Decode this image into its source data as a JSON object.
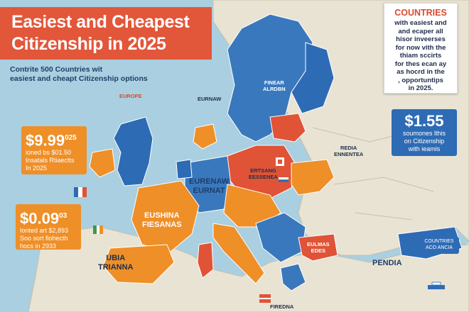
{
  "colors": {
    "sea": "#a9cfe0",
    "land": "#e9e3d4",
    "blue_region": "#3a78bd",
    "orange_region": "#ef8f28",
    "red_region": "#e05336",
    "title_banner": "#e2563a"
  },
  "title": {
    "line1": "Easiest and Cheapest",
    "line2": "Citizenship in 2025"
  },
  "subtitle": {
    "line1": "Contrite 500 Countries wit",
    "line2": "easiest and cheapt Citizenship options"
  },
  "info_box": {
    "heading": "COUNTRIES",
    "lines": [
      "with easiest and",
      "and ecaper all",
      "hisor inveerses",
      "for now vith the",
      "thiam sccirts",
      "for thes ecan ay",
      "as hocrd in the",
      ", opportuntips",
      "in 2025."
    ]
  },
  "cards": {
    "left_top": {
      "price": "$9.99",
      "sup": "025",
      "lines": [
        "ioned bs $01.50",
        "Insatals Rtiaectts",
        "In 2025"
      ]
    },
    "left_bottom": {
      "price": "$0.09",
      "sup": "03",
      "lines": [
        "Ionted art $2,893",
        "Soo sort fiohecth",
        "hocs in 2933"
      ]
    },
    "right": {
      "price": "$1.55",
      "lines": [
        "soumones lthis",
        "on Citizenship",
        "with ieamis"
      ]
    },
    "right_small": {
      "lines": [
        "COUNTRIES",
        "ACO ANCIA"
      ]
    }
  },
  "map_labels": {
    "europe": "EUROPE",
    "eurnaw": "EURNAW",
    "finland": [
      "FINEAR",
      "ALRDBN"
    ],
    "central_left": [
      "EURENAW",
      "EURNAT"
    ],
    "east_center": [
      "ERTSANG",
      "EESSENEA"
    ],
    "iberia": [
      "EUSHINA",
      "FIESANAS"
    ],
    "africa_left": [
      "UBIA",
      "TRIANNA"
    ],
    "middle_east": "PENDIA",
    "russia": [
      "REDIA",
      "ENNENTEA"
    ],
    "east_red": [
      "EULMAS",
      "EDES"
    ],
    "bottom_red": "FIREDNA"
  }
}
